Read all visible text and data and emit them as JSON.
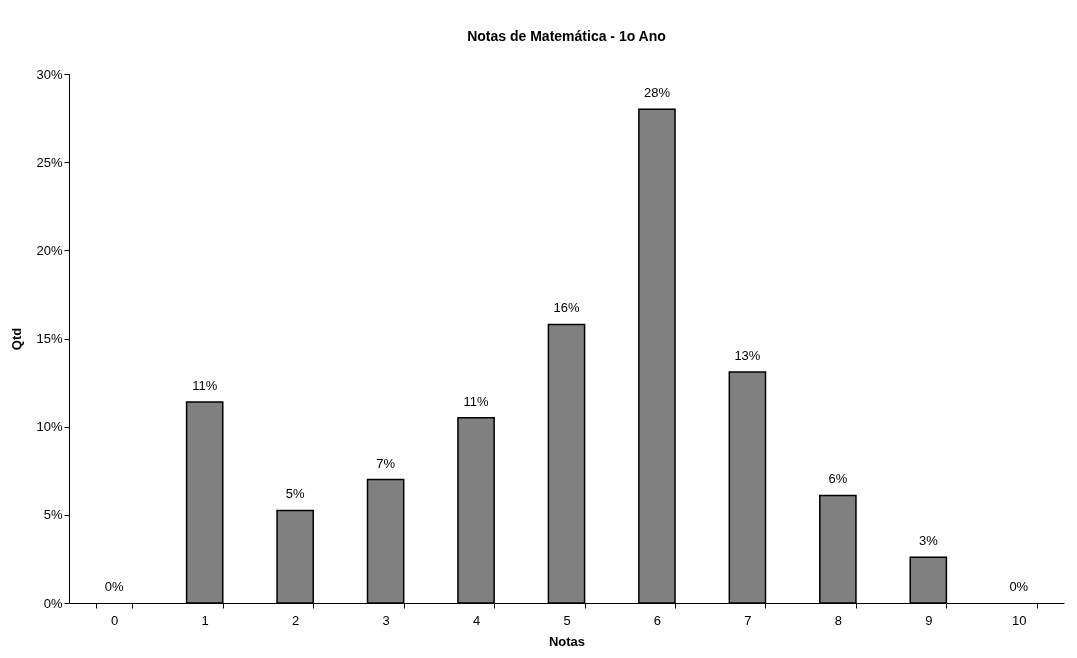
{
  "chart_data": {
    "type": "bar",
    "title": "Notas de Matemática - 1o Ano",
    "xlabel": "Notas",
    "ylabel": "Qtd",
    "categories": [
      "0",
      "1",
      "2",
      "3",
      "4",
      "5",
      "6",
      "7",
      "8",
      "9",
      "10"
    ],
    "values": [
      0,
      11.4,
      5.25,
      7.0,
      10.5,
      15.8,
      28.0,
      13.1,
      6.1,
      2.6,
      0
    ],
    "value_labels": [
      "0%",
      "11%",
      "5%",
      "7%",
      "11%",
      "16%",
      "28%",
      "13%",
      "6%",
      "3%",
      "0%"
    ],
    "color": "#808080",
    "ylim": [
      0,
      30
    ],
    "yticks": [
      {
        "value": 0,
        "label": "0%"
      },
      {
        "value": 5,
        "label": "5%"
      },
      {
        "value": 10,
        "label": "10%"
      },
      {
        "value": 15,
        "label": "15%"
      },
      {
        "value": 20,
        "label": "20%"
      },
      {
        "value": 25,
        "label": "25%"
      },
      {
        "value": 30,
        "label": "30%"
      }
    ],
    "grid": false
  }
}
